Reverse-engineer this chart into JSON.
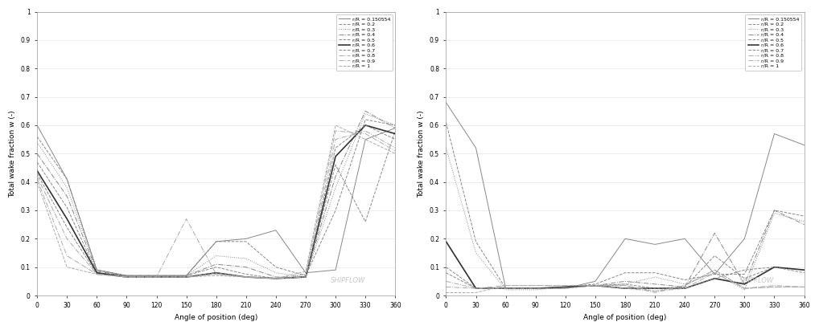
{
  "ylabel": "Total wake fraction w (-)",
  "xlabel": "Angle of position (deg)",
  "xlim": [
    0,
    360
  ],
  "ylim": [
    0,
    1
  ],
  "xticks": [
    0,
    30,
    60,
    90,
    120,
    150,
    180,
    210,
    240,
    270,
    300,
    330,
    360
  ],
  "yticks": [
    0,
    0.1,
    0.2,
    0.3,
    0.4,
    0.5,
    0.6,
    0.7,
    0.8,
    0.9,
    1
  ],
  "legend_labels": [
    "r/R = 0.150554",
    "r/R = 0.2",
    "r/R = 0.3",
    "r/R = 0.4",
    "r/R = 0.5",
    "r/R = 0.6",
    "r/R = 0.7",
    "r/R = 0.8",
    "r/R = 0.9",
    "r/R = 1"
  ],
  "watermark": "SHIPFLOW",
  "angles": [
    0,
    30,
    60,
    90,
    120,
    150,
    180,
    210,
    240,
    270,
    300,
    330,
    360
  ],
  "chart1": {
    "series": {
      "r0150554": [
        0.6,
        0.41,
        0.09,
        0.07,
        0.07,
        0.07,
        0.19,
        0.2,
        0.23,
        0.08,
        0.09,
        0.55,
        0.59
      ],
      "r02": [
        0.56,
        0.41,
        0.09,
        0.07,
        0.07,
        0.07,
        0.19,
        0.19,
        0.1,
        0.07,
        0.3,
        0.62,
        0.6
      ],
      "r03": [
        0.54,
        0.38,
        0.09,
        0.07,
        0.07,
        0.07,
        0.14,
        0.13,
        0.08,
        0.065,
        0.38,
        0.64,
        0.6
      ],
      "r04": [
        0.5,
        0.35,
        0.085,
        0.07,
        0.07,
        0.07,
        0.11,
        0.1,
        0.065,
        0.065,
        0.42,
        0.65,
        0.59
      ],
      "r05": [
        0.47,
        0.31,
        0.08,
        0.07,
        0.065,
        0.07,
        0.1,
        0.075,
        0.06,
        0.065,
        0.46,
        0.26,
        0.58
      ],
      "r06": [
        0.44,
        0.27,
        0.08,
        0.065,
        0.065,
        0.065,
        0.08,
        0.065,
        0.06,
        0.065,
        0.49,
        0.6,
        0.57
      ],
      "r07": [
        0.43,
        0.24,
        0.075,
        0.065,
        0.065,
        0.065,
        0.08,
        0.065,
        0.06,
        0.065,
        0.52,
        0.6,
        0.55
      ],
      "r08": [
        0.42,
        0.2,
        0.075,
        0.065,
        0.065,
        0.065,
        0.075,
        0.065,
        0.06,
        0.065,
        0.55,
        0.58,
        0.52
      ],
      "r09": [
        0.41,
        0.14,
        0.075,
        0.065,
        0.065,
        0.27,
        0.075,
        0.065,
        0.06,
        0.075,
        0.58,
        0.57,
        0.51
      ],
      "r1": [
        0.4,
        0.1,
        0.075,
        0.065,
        0.065,
        0.065,
        0.07,
        0.065,
        0.06,
        0.085,
        0.6,
        0.55,
        0.5
      ]
    }
  },
  "chart2": {
    "series": {
      "r0150554": [
        0.68,
        0.52,
        0.025,
        0.025,
        0.025,
        0.05,
        0.2,
        0.18,
        0.2,
        0.075,
        0.2,
        0.57,
        0.53
      ],
      "r02": [
        0.61,
        0.19,
        0.025,
        0.025,
        0.03,
        0.04,
        0.08,
        0.08,
        0.055,
        0.075,
        0.075,
        0.3,
        0.28
      ],
      "r03": [
        0.52,
        0.15,
        0.02,
        0.02,
        0.03,
        0.035,
        0.04,
        0.065,
        0.04,
        0.08,
        0.02,
        0.29,
        0.26
      ],
      "r04": [
        0.19,
        0.025,
        0.025,
        0.025,
        0.03,
        0.035,
        0.05,
        0.04,
        0.03,
        0.22,
        0.04,
        0.3,
        0.25
      ],
      "r05": [
        0.1,
        0.025,
        0.025,
        0.025,
        0.03,
        0.035,
        0.04,
        0.025,
        0.03,
        0.14,
        0.06,
        0.1,
        0.09
      ],
      "r06": [
        0.19,
        0.025,
        0.025,
        0.025,
        0.03,
        0.035,
        0.025,
        0.025,
        0.025,
        0.06,
        0.04,
        0.1,
        0.09
      ],
      "r07": [
        0.08,
        0.025,
        0.025,
        0.025,
        0.025,
        0.035,
        0.025,
        0.025,
        0.025,
        0.06,
        0.09,
        0.1,
        0.08
      ],
      "r08": [
        0.05,
        0.025,
        0.025,
        0.025,
        0.025,
        0.035,
        0.025,
        0.015,
        0.025,
        0.08,
        0.025,
        0.035,
        0.03
      ],
      "r09": [
        0.03,
        0.025,
        0.035,
        0.035,
        0.035,
        0.035,
        0.035,
        0.01,
        0.035,
        0.09,
        0.025,
        0.03,
        0.03
      ],
      "r1": [
        0.01,
        0.01,
        0.035,
        0.035,
        0.035,
        0.035,
        0.035,
        0.015,
        0.035,
        0.09,
        0.025,
        0.03,
        0.03
      ]
    }
  }
}
